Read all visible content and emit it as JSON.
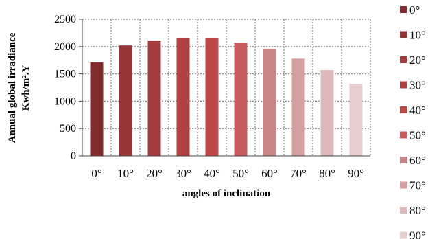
{
  "chart_data": {
    "type": "bar",
    "categories": [
      "0°",
      "10°",
      "20°",
      "30°",
      "40°",
      "50°",
      "60°",
      "70°",
      "80°",
      "90°"
    ],
    "values": [
      1710,
      2020,
      2110,
      2150,
      2150,
      2070,
      1960,
      1780,
      1570,
      1320
    ],
    "colors": [
      "#822c2e",
      "#963436",
      "#a43b3c",
      "#b24040",
      "#bd4646",
      "#c85c5d",
      "#c88586",
      "#d39f9f",
      "#ddb9b9",
      "#e8cfcf"
    ],
    "title": "",
    "xlabel": "angles of inclination",
    "ylabel_line1": "Annual global irradiance",
    "ylabel_line2": "Kwh/m².Y",
    "ylim": [
      0,
      2500
    ],
    "yticks": [
      "0",
      "500",
      "1000",
      "1500",
      "2000",
      "2500"
    ],
    "grid": "dotted, horizontal and vertical",
    "legend_position": "right",
    "legend": [
      "0°",
      "10°",
      "20°",
      "30°",
      "40°",
      "50°",
      "60°",
      "70°",
      "80°",
      "90°"
    ]
  }
}
